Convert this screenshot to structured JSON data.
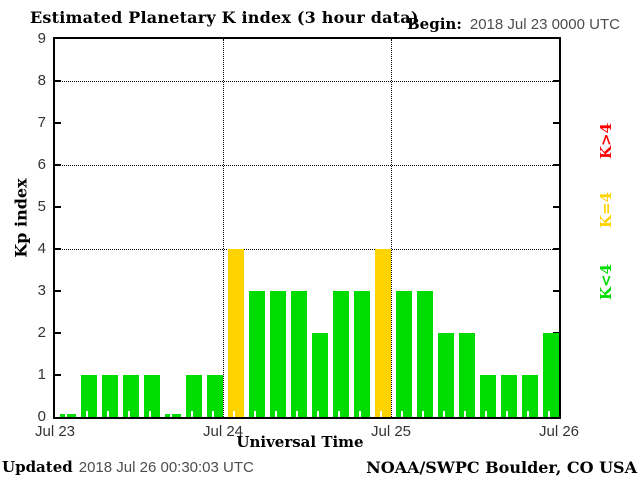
{
  "header": {
    "title": "Estimated Planetary K index (3 hour data)",
    "begin_label": "Begin:",
    "begin_value": "2018 Jul 23 0000 UTC"
  },
  "footer": {
    "updated_label": "Updated",
    "updated_value": "2018 Jul 26 00:30:03 UTC",
    "credit": "NOAA/SWPC Boulder, CO USA"
  },
  "chart_data": {
    "type": "bar",
    "title": "Estimated Planetary K index (3 hour data)",
    "xlabel": "Universal Time",
    "ylabel": "Kp index",
    "begin": "2018 Jul 23 0000 UTC",
    "interval_hours": 3,
    "ylim": [
      0,
      9
    ],
    "y_ticks": [
      0,
      1,
      2,
      3,
      4,
      5,
      6,
      7,
      8,
      9
    ],
    "y_gridlines": [
      4,
      6,
      8
    ],
    "x_tick_labels": [
      "Jul 23",
      "Jul 24",
      "Jul 25",
      "Jul 26"
    ],
    "x_gridline_days": [
      "Jul 24",
      "Jul 25"
    ],
    "values": [
      0,
      1,
      1,
      1,
      1,
      0,
      1,
      1,
      4,
      3,
      3,
      3,
      2,
      3,
      3,
      4,
      3,
      3,
      2,
      2,
      1,
      1,
      1,
      2
    ],
    "color_thresholds": {
      "k_lt_4": "#00dc00",
      "k_eq_4": "#ffd300",
      "k_gt_4": "#ff0000"
    },
    "legend": [
      {
        "label": "K>4",
        "color": "#ff0000"
      },
      {
        "label": "K=4",
        "color": "#ffd300"
      },
      {
        "label": "K<4",
        "color": "#00dc00"
      }
    ],
    "grid": true,
    "legend_position": "right-rotated"
  }
}
